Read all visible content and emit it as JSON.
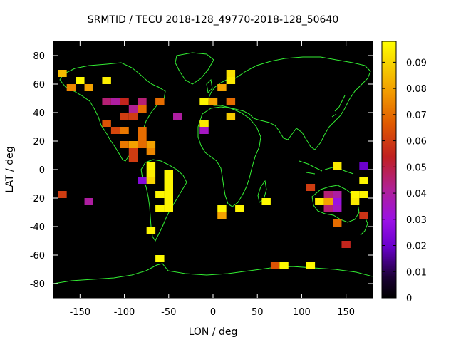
{
  "chart_data": {
    "type": "heatmap",
    "title": "SRMTID / TECU 2018-128_49770-2018-128_50640",
    "xlabel": "LON / deg",
    "ylabel": "LAT / deg",
    "xlim": [
      -180,
      180
    ],
    "ylim": [
      -90,
      90
    ],
    "x_ticks": [
      -150,
      -100,
      -50,
      0,
      50,
      100,
      150
    ],
    "y_ticks": [
      -80,
      -60,
      -40,
      -20,
      0,
      20,
      40,
      60,
      80
    ],
    "colorbar": {
      "range": [
        0,
        0.098
      ],
      "ticks": [
        "0",
        "0.01",
        "0.02",
        "0.03",
        "0.04",
        "0.05",
        "0.06",
        "0.07",
        "0.08",
        "0.09"
      ],
      "tick_values": [
        0,
        0.01,
        0.02,
        0.03,
        0.04,
        0.05,
        0.06,
        0.07,
        0.08,
        0.09
      ],
      "colormap": "gnuplot-black-purple-red-orange-yellow"
    },
    "background_color": "#000000",
    "coastline_color": "#33ee33",
    "cell_size_deg": [
      10,
      5
    ],
    "cells": [
      {
        "lon": -170,
        "lat": 67.5,
        "value": 0.085
      },
      {
        "lon": -160,
        "lat": 57.5,
        "value": 0.075
      },
      {
        "lon": -150,
        "lat": 62.5,
        "value": 0.097
      },
      {
        "lon": -140,
        "lat": 57.5,
        "value": 0.08
      },
      {
        "lon": -120,
        "lat": 62.5,
        "value": 0.095
      },
      {
        "lon": -120,
        "lat": 47.5,
        "value": 0.045
      },
      {
        "lon": -110,
        "lat": 47.5,
        "value": 0.04
      },
      {
        "lon": -100,
        "lat": 47.5,
        "value": 0.055
      },
      {
        "lon": -80,
        "lat": 47.5,
        "value": 0.045
      },
      {
        "lon": -80,
        "lat": 42.5,
        "value": 0.07
      },
      {
        "lon": -90,
        "lat": 42.5,
        "value": 0.042
      },
      {
        "lon": -100,
        "lat": 37.5,
        "value": 0.06
      },
      {
        "lon": -90,
        "lat": 37.5,
        "value": 0.06
      },
      {
        "lon": -60,
        "lat": 47.5,
        "value": 0.07
      },
      {
        "lon": -40,
        "lat": 37.5,
        "value": 0.04
      },
      {
        "lon": -120,
        "lat": 32.5,
        "value": 0.065
      },
      {
        "lon": -110,
        "lat": 27.5,
        "value": 0.062
      },
      {
        "lon": -100,
        "lat": 27.5,
        "value": 0.072
      },
      {
        "lon": -80,
        "lat": 27.5,
        "value": 0.07
      },
      {
        "lon": -80,
        "lat": 22.5,
        "value": 0.07
      },
      {
        "lon": -90,
        "lat": 17.5,
        "value": 0.08
      },
      {
        "lon": -80,
        "lat": 17.5,
        "value": 0.07
      },
      {
        "lon": -70,
        "lat": 17.5,
        "value": 0.08
      },
      {
        "lon": -100,
        "lat": 17.5,
        "value": 0.072
      },
      {
        "lon": -90,
        "lat": 12.5,
        "value": 0.06
      },
      {
        "lon": -70,
        "lat": 12.5,
        "value": 0.075
      },
      {
        "lon": -90,
        "lat": 7.5,
        "value": 0.06
      },
      {
        "lon": -70,
        "lat": 2.5,
        "value": 0.096
      },
      {
        "lon": -70,
        "lat": -2.5,
        "value": 0.094
      },
      {
        "lon": -80,
        "lat": -7.5,
        "value": 0.025
      },
      {
        "lon": -70,
        "lat": -7.5,
        "value": 0.09
      },
      {
        "lon": -50,
        "lat": -2.5,
        "value": 0.096
      },
      {
        "lon": -50,
        "lat": -7.5,
        "value": 0.096
      },
      {
        "lon": -50,
        "lat": -12.5,
        "value": 0.096
      },
      {
        "lon": -60,
        "lat": -17.5,
        "value": 0.096
      },
      {
        "lon": -50,
        "lat": -17.5,
        "value": 0.096
      },
      {
        "lon": -50,
        "lat": -22.5,
        "value": 0.096
      },
      {
        "lon": -60,
        "lat": -27.5,
        "value": 0.096
      },
      {
        "lon": -50,
        "lat": -27.5,
        "value": 0.096
      },
      {
        "lon": -70,
        "lat": -42.5,
        "value": 0.096
      },
      {
        "lon": -170,
        "lat": -17.5,
        "value": 0.06
      },
      {
        "lon": -140,
        "lat": -22.5,
        "value": 0.04
      },
      {
        "lon": -60,
        "lat": -62.5,
        "value": 0.097
      },
      {
        "lon": -10,
        "lat": 32.5,
        "value": 0.094
      },
      {
        "lon": -10,
        "lat": 27.5,
        "value": 0.035
      },
      {
        "lon": -10,
        "lat": 47.5,
        "value": 0.096
      },
      {
        "lon": 0,
        "lat": 47.5,
        "value": 0.08
      },
      {
        "lon": 20,
        "lat": 47.5,
        "value": 0.07
      },
      {
        "lon": 10,
        "lat": 57.5,
        "value": 0.08
      },
      {
        "lon": 20,
        "lat": 67.5,
        "value": 0.092
      },
      {
        "lon": 20,
        "lat": 62.5,
        "value": 0.094
      },
      {
        "lon": 20,
        "lat": 37.5,
        "value": 0.088
      },
      {
        "lon": 10,
        "lat": -27.5,
        "value": 0.096
      },
      {
        "lon": 10,
        "lat": -32.5,
        "value": 0.08
      },
      {
        "lon": 30,
        "lat": -27.5,
        "value": 0.096
      },
      {
        "lon": 60,
        "lat": -22.5,
        "value": 0.097
      },
      {
        "lon": 70,
        "lat": -67.5,
        "value": 0.065
      },
      {
        "lon": 80,
        "lat": -67.5,
        "value": 0.097
      },
      {
        "lon": 110,
        "lat": -12.5,
        "value": 0.06
      },
      {
        "lon": 110,
        "lat": -67.5,
        "value": 0.097
      },
      {
        "lon": 130,
        "lat": -17.5,
        "value": 0.045
      },
      {
        "lon": 140,
        "lat": -17.5,
        "value": 0.04
      },
      {
        "lon": 120,
        "lat": -22.5,
        "value": 0.094
      },
      {
        "lon": 130,
        "lat": -22.5,
        "value": 0.08
      },
      {
        "lon": 140,
        "lat": -22.5,
        "value": 0.03
      },
      {
        "lon": 130,
        "lat": -27.5,
        "value": 0.045
      },
      {
        "lon": 140,
        "lat": -27.5,
        "value": 0.035
      },
      {
        "lon": 140,
        "lat": -37.5,
        "value": 0.07
      },
      {
        "lon": 140,
        "lat": 2.5,
        "value": 0.094
      },
      {
        "lon": 170,
        "lat": 2.5,
        "value": 0.02
      },
      {
        "lon": 170,
        "lat": -7.5,
        "value": 0.096
      },
      {
        "lon": 160,
        "lat": -17.5,
        "value": 0.096
      },
      {
        "lon": 170,
        "lat": -17.5,
        "value": 0.096
      },
      {
        "lon": 160,
        "lat": -22.5,
        "value": 0.094
      },
      {
        "lon": 170,
        "lat": -32.5,
        "value": 0.058
      },
      {
        "lon": 150,
        "lat": -52.5,
        "value": 0.055
      }
    ]
  }
}
